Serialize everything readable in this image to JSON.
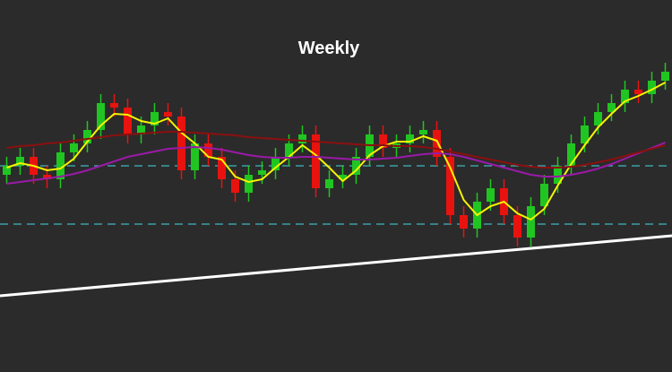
{
  "chart_data": {
    "type": "candlestick",
    "title": "Weekly",
    "ylim": [
      0,
      415
    ],
    "up_color": "#21c521",
    "down_color": "#e8130f",
    "open": [
      220,
      230,
      240,
      220,
      215,
      245,
      255,
      270,
      300,
      295,
      265,
      275,
      290,
      285,
      225,
      255,
      240,
      215,
      200,
      220,
      225,
      240,
      255,
      265,
      205,
      215,
      220,
      240,
      265,
      250,
      255,
      265,
      270,
      240,
      175,
      160,
      190,
      205,
      175,
      150,
      185,
      210,
      230,
      255,
      275,
      290,
      300,
      315,
      310,
      325
    ],
    "high": [
      240,
      250,
      250,
      230,
      255,
      265,
      280,
      310,
      310,
      305,
      285,
      300,
      300,
      295,
      265,
      265,
      250,
      225,
      230,
      235,
      250,
      265,
      275,
      275,
      225,
      230,
      250,
      275,
      275,
      265,
      275,
      280,
      280,
      250,
      185,
      200,
      215,
      215,
      185,
      195,
      220,
      240,
      265,
      285,
      300,
      310,
      325,
      325,
      335,
      345
    ],
    "low": [
      210,
      220,
      210,
      205,
      205,
      235,
      245,
      260,
      285,
      255,
      255,
      265,
      275,
      215,
      215,
      230,
      205,
      190,
      190,
      210,
      215,
      230,
      245,
      195,
      195,
      205,
      210,
      230,
      240,
      240,
      245,
      255,
      230,
      165,
      150,
      150,
      180,
      165,
      140,
      140,
      175,
      200,
      220,
      245,
      265,
      280,
      290,
      300,
      300,
      315
    ],
    "close": [
      230,
      240,
      220,
      215,
      245,
      255,
      270,
      300,
      295,
      265,
      275,
      290,
      285,
      225,
      255,
      240,
      215,
      200,
      220,
      225,
      240,
      255,
      265,
      205,
      215,
      220,
      240,
      265,
      250,
      255,
      265,
      270,
      240,
      175,
      160,
      190,
      205,
      175,
      150,
      185,
      210,
      230,
      255,
      275,
      290,
      300,
      315,
      310,
      325,
      335
    ],
    "series": [
      {
        "color": "#f5f500",
        "values": [
          228,
          233,
          230,
          225,
          227,
          238,
          257,
          275,
          288,
          287,
          280,
          277,
          283,
          267,
          255,
          240,
          237,
          218,
          212,
          215,
          228,
          240,
          253,
          242,
          228,
          213,
          225,
          242,
          252,
          257,
          257,
          263,
          258,
          228,
          192,
          175,
          185,
          190,
          177,
          170,
          182,
          208,
          232,
          253,
          273,
          288,
          302,
          308,
          315,
          323
        ]
      },
      {
        "color": "#9a1aa8",
        "values": [
          210,
          212,
          214,
          216,
          218,
          221,
          225,
          230,
          235,
          240,
          243,
          246,
          249,
          250,
          251,
          250,
          248,
          245,
          242,
          240,
          239,
          239,
          240,
          240,
          239,
          238,
          237,
          237,
          238,
          239,
          241,
          243,
          244,
          243,
          240,
          236,
          232,
          228,
          224,
          220,
          218,
          218,
          220,
          223,
          227,
          232,
          238,
          244,
          250,
          256
        ]
      },
      {
        "color": "#8b1010",
        "values": [
          250,
          252,
          253,
          255,
          256,
          258,
          260,
          262,
          264,
          265,
          266,
          267,
          268,
          268,
          267,
          266,
          265,
          264,
          262,
          261,
          260,
          259,
          258,
          257,
          256,
          255,
          254,
          253,
          253,
          252,
          252,
          251,
          249,
          246,
          243,
          240,
          237,
          234,
          231,
          229,
          228,
          228,
          229,
          231,
          234,
          237,
          241,
          245,
          249,
          253
        ]
      }
    ],
    "hlines": [
      230,
      165
    ],
    "hline_color": "#3fb6c0",
    "trendline": [
      85,
      152
    ],
    "trendline_color": "#ffffff"
  }
}
